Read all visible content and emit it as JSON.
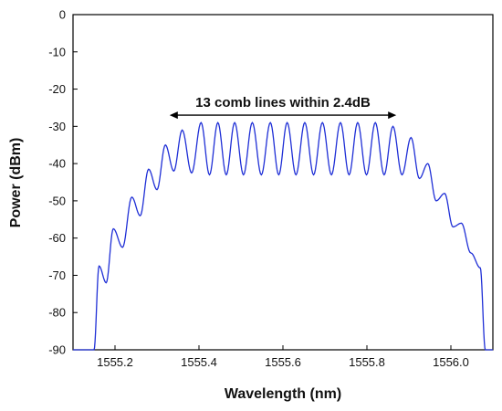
{
  "chart_data": {
    "type": "line",
    "xlabel": "Wavelength (nm)",
    "ylabel": "Power (dBm)",
    "xlim": [
      1555.1,
      1556.1
    ],
    "ylim": [
      -90,
      0
    ],
    "xticks": [
      1555.2,
      1555.4,
      1555.6,
      1555.8,
      1556.0
    ],
    "xtick_labels": [
      "1555.2",
      "1555.4",
      "1555.6",
      "1555.8",
      "1556.0"
    ],
    "yticks": [
      0,
      -10,
      -20,
      -30,
      -40,
      -50,
      -60,
      -70,
      -80,
      -90
    ],
    "ytick_labels": [
      "0",
      "-10",
      "-20",
      "-30",
      "-40",
      "-50",
      "-60",
      "-70",
      "-80",
      "-90"
    ],
    "grid": false,
    "legend": "none",
    "line_color": "#1f2fd6",
    "comb": {
      "peak_wavelengths": [
        1555.162,
        1555.196,
        1555.24,
        1555.28,
        1555.32,
        1555.36,
        1555.405,
        1555.445,
        1555.485,
        1555.527,
        1555.57,
        1555.61,
        1555.652,
        1555.694,
        1555.737,
        1555.778,
        1555.82,
        1555.862,
        1555.905,
        1555.945,
        1555.985,
        1556.025,
        1556.07
      ],
      "peak_power_dbm": [
        -67.5,
        -57.5,
        -49,
        -41.5,
        -35,
        -31,
        -29,
        -29,
        -29,
        -29,
        -29,
        -29,
        -29,
        -29,
        -29,
        -29,
        -29,
        -30,
        -33,
        -40,
        -48,
        -56,
        -68
      ],
      "trough_power_dbm": [
        -72,
        -62.5,
        -54,
        -47,
        -42,
        -42.5,
        -43,
        -43,
        -43,
        -43,
        -43,
        -43,
        -43,
        -43,
        -43,
        -43,
        -43,
        -43,
        -44,
        -50,
        -57,
        -64
      ]
    },
    "annotation": {
      "text": "13 comb lines within 2.4dB",
      "arrow_from_x": 1555.33,
      "arrow_to_x": 1555.87,
      "arrow_y": -27
    }
  }
}
